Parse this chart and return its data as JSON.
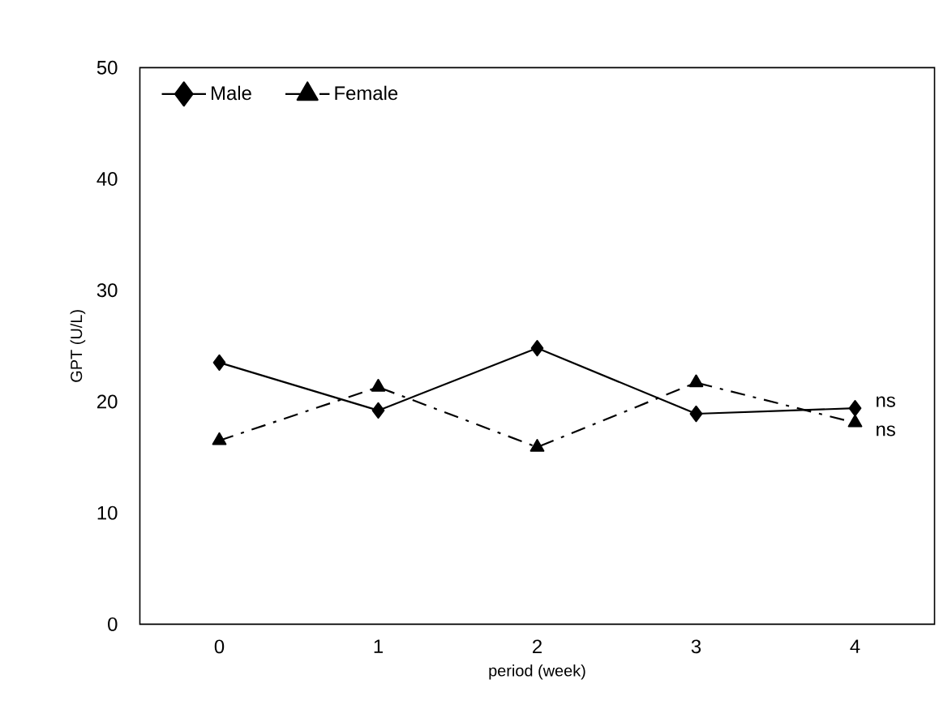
{
  "chart_data": {
    "type": "line",
    "xlabel": "period (week)",
    "ylabel": "GPT (U/L)",
    "categories": [
      "0",
      "1",
      "2",
      "3",
      "4"
    ],
    "series": [
      {
        "name": "Male",
        "color": "#000000",
        "marker": "diamond",
        "line_style": "solid",
        "values": [
          23.5,
          19.2,
          24.8,
          18.9,
          19.4
        ]
      },
      {
        "name": "Female",
        "color": "#000000",
        "marker": "triangle",
        "line_style": "dashed",
        "values": [
          16.5,
          21.3,
          15.9,
          21.7,
          18.1
        ]
      }
    ],
    "ylim": [
      0,
      50
    ],
    "yticks": [
      0,
      10,
      20,
      30,
      40,
      50
    ],
    "grid": false,
    "legend": "top left",
    "annotations": [
      {
        "text": "ns",
        "x": "4",
        "y": 19.4
      },
      {
        "text": "ns",
        "x": "4",
        "y": 18.1
      }
    ]
  }
}
